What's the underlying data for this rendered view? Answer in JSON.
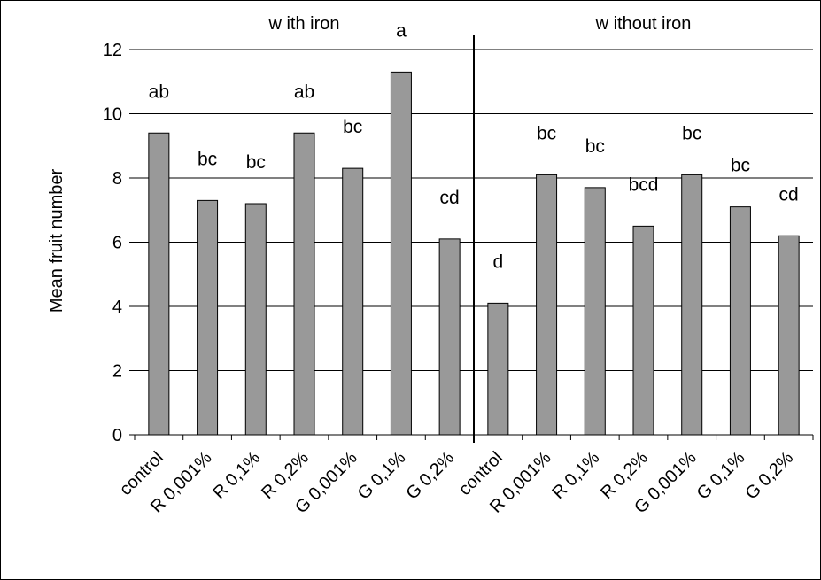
{
  "chart_data": {
    "type": "bar",
    "ylabel": "Mean fruit number",
    "xlabel": "",
    "ylim": [
      0,
      12
    ],
    "yticks": [
      0,
      2,
      4,
      6,
      8,
      10,
      12
    ],
    "grid": true,
    "group_labels": [
      "w ith iron",
      "w ithout iron"
    ],
    "group_sizes": [
      7,
      7
    ],
    "categories": [
      "control",
      "R 0,001%",
      "R 0,1%",
      "R 0,2%",
      "G 0,001%",
      "G 0,1%",
      "G 0,2%",
      "control",
      "R 0,001%",
      "R 0,1%",
      "R 0,2%",
      "G 0,001%",
      "G 0,1%",
      "G 0,2%"
    ],
    "values": [
      9.4,
      7.3,
      7.2,
      9.4,
      8.3,
      11.3,
      6.1,
      4.1,
      8.1,
      7.7,
      6.5,
      8.1,
      7.1,
      6.2
    ],
    "annotations": [
      "ab",
      "bc",
      "bc",
      "ab",
      "bc",
      "a",
      "cd",
      "d",
      "bc",
      "bc",
      "bcd",
      "bc",
      "bc",
      "cd"
    ],
    "bar_color": "#999999",
    "gridline_color": "#000000"
  }
}
